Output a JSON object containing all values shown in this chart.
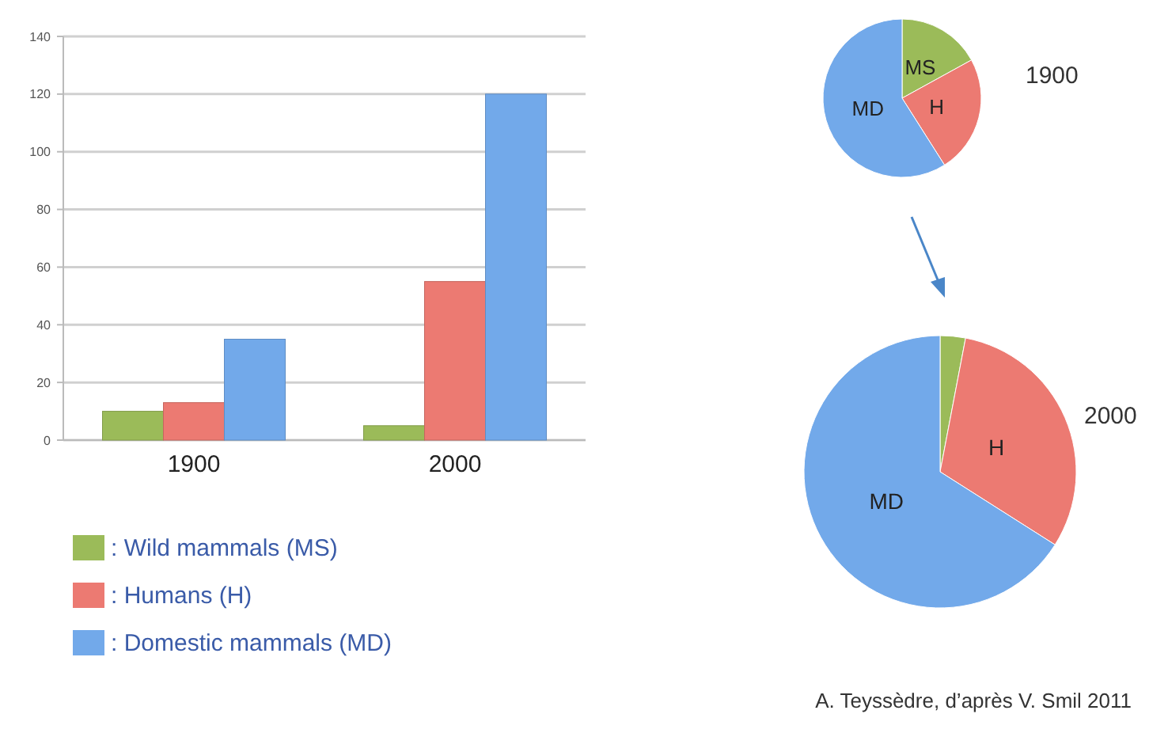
{
  "chart_data": [
    {
      "type": "bar",
      "categories": [
        "1900",
        "2000"
      ],
      "series": [
        {
          "name": ": Wild mammals (MS)",
          "color": "#9bbb59",
          "values": [
            10,
            5
          ]
        },
        {
          "name": ": Humans (H)",
          "color": "#ec7a72",
          "values": [
            13,
            55
          ]
        },
        {
          "name": ": Domestic mammals (MD)",
          "color": "#72a9ea",
          "values": [
            35,
            120
          ]
        }
      ],
      "ylim": [
        0,
        140
      ],
      "yticks": [
        0,
        20,
        40,
        60,
        80,
        100,
        120,
        140
      ],
      "grid": "y",
      "legend": "bottom"
    },
    {
      "type": "pie",
      "title": "1900",
      "categories": [
        "MS",
        "H",
        "MD"
      ],
      "values": [
        17,
        24,
        59
      ],
      "colors": [
        "#9bbb59",
        "#ec7a72",
        "#72a9ea"
      ]
    },
    {
      "type": "pie",
      "title": "2000",
      "categories": [
        null,
        "H",
        "MD"
      ],
      "values": [
        3,
        31,
        66
      ],
      "colors": [
        "#9bbb59",
        "#ec7a72",
        "#72a9ea"
      ],
      "annotations": [
        "A. Teyssèdre, d’après V. Smil 2011"
      ]
    }
  ]
}
